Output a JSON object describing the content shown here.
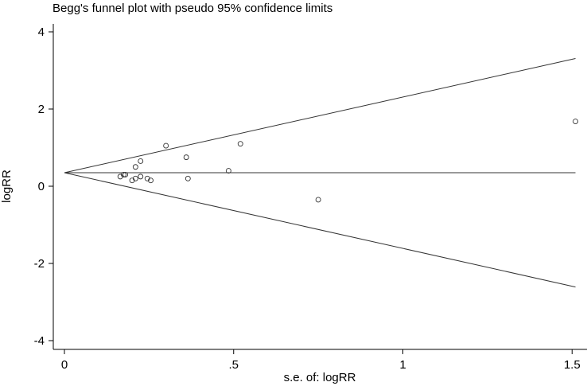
{
  "chart_data": {
    "type": "scatter",
    "title": "Begg's funnel plot with pseudo 95% confidence limits",
    "xlabel": "s.e. of: logRR",
    "ylabel": "logRR",
    "xlim": [
      0,
      1.54
    ],
    "ylim": [
      -4.2,
      4.2
    ],
    "xticks": [
      {
        "value": 0,
        "label": "0"
      },
      {
        "value": 0.5,
        "label": ".5"
      },
      {
        "value": 1,
        "label": "1"
      },
      {
        "value": 1.5,
        "label": "1.5"
      }
    ],
    "yticks": [
      {
        "value": 4,
        "label": "4"
      },
      {
        "value": 2,
        "label": "2"
      },
      {
        "value": 0,
        "label": "0"
      },
      {
        "value": -2,
        "label": "-2"
      },
      {
        "value": -4,
        "label": "-4"
      }
    ],
    "pooled_estimate": 0.35,
    "confidence_limits": {
      "x_end": 1.51,
      "upper_end": 3.31,
      "lower_end": -2.61
    },
    "points": [
      {
        "x": 0.165,
        "y": 0.25
      },
      {
        "x": 0.175,
        "y": 0.3
      },
      {
        "x": 0.18,
        "y": 0.3
      },
      {
        "x": 0.2,
        "y": 0.15
      },
      {
        "x": 0.21,
        "y": 0.2
      },
      {
        "x": 0.21,
        "y": 0.5
      },
      {
        "x": 0.225,
        "y": 0.25
      },
      {
        "x": 0.225,
        "y": 0.65
      },
      {
        "x": 0.245,
        "y": 0.2
      },
      {
        "x": 0.255,
        "y": 0.15
      },
      {
        "x": 0.3,
        "y": 1.05
      },
      {
        "x": 0.36,
        "y": 0.75
      },
      {
        "x": 0.365,
        "y": 0.2
      },
      {
        "x": 0.485,
        "y": 0.4
      },
      {
        "x": 0.52,
        "y": 1.1
      },
      {
        "x": 0.75,
        "y": -0.35
      },
      {
        "x": 1.51,
        "y": 1.68
      }
    ]
  }
}
